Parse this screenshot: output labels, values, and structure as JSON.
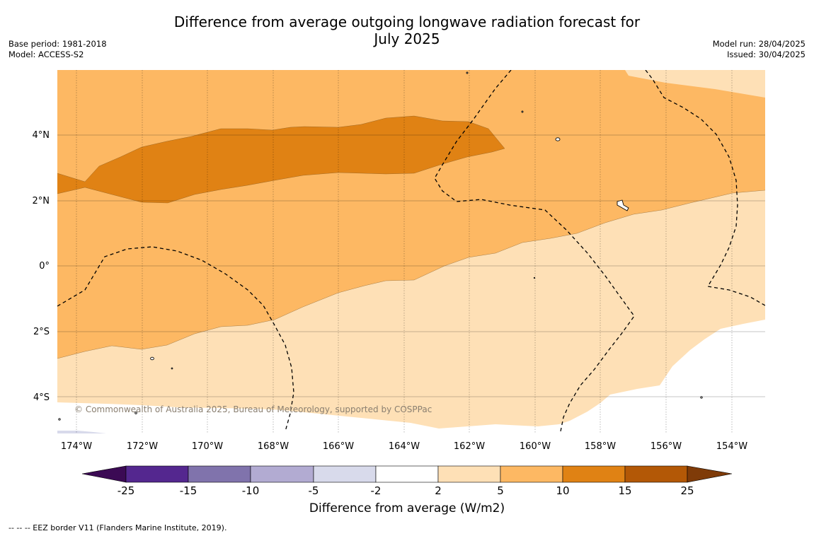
{
  "title_line1": "Difference from average outgoing longwave radiation forecast for",
  "title_line2": "July 2025",
  "base_period": "Base period: 1981-2018",
  "model": "Model: ACCESS-S2",
  "model_run": "Model run: 28/04/2025",
  "issued": "Issued: 30/04/2025",
  "copyright": "© Commonwealth of Australia 2025, Bureau of Meteorology, supported by COSPPac",
  "lon_labels": [
    "174°W",
    "172°W",
    "170°W",
    "168°W",
    "166°W",
    "164°W",
    "162°W",
    "160°W",
    "158°W",
    "156°W",
    "154°W"
  ],
  "lat_labels": [
    "4°N",
    "2°N",
    "0°",
    "2°S",
    "4°S"
  ],
  "colorbar": {
    "title": "Difference from average (W/m2)",
    "ticks": [
      "-25",
      "-15",
      "-10",
      "-5",
      "-2",
      "2",
      "5",
      "10",
      "15",
      "25"
    ],
    "colors": {
      "min_extend": "#3b0a54",
      "b1": "#54278f",
      "b2": "#8073ac",
      "b3": "#b2abd2",
      "b4": "#d8daeb",
      "b5": "#ffffff",
      "b6": "#fee0b6",
      "b7": "#fdb863",
      "b8": "#e08214",
      "b9": "#b35806",
      "max_extend": "#7f3b08"
    }
  },
  "footnote": "--  --  -- EEZ border V11 (Flanders Marine Institute, 2019)."
}
